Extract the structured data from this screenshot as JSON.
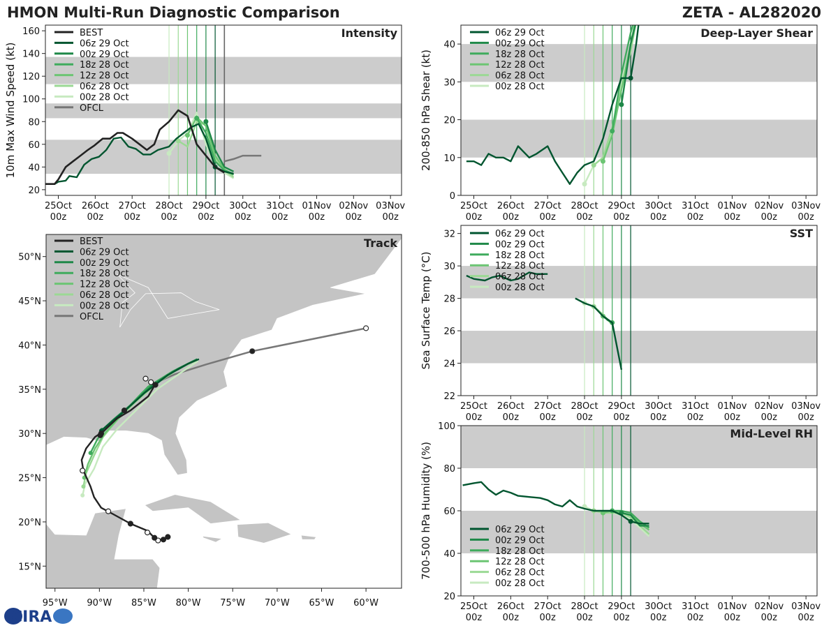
{
  "figure": {
    "title_left": "HMON Multi-Run Diagnostic Comparison",
    "title_right": "ZETA - AL282020",
    "logo_text": "CIRA"
  },
  "colors": {
    "best": "#222222",
    "ofcl": "#777777",
    "runs": [
      "#00552f",
      "#1e8848",
      "#3fab5d",
      "#6cc573",
      "#9bd994",
      "#c7eac0"
    ],
    "band": "#cccccc",
    "land": "#c4c4c4",
    "ocean": "#ffffff"
  },
  "time_axis": {
    "ticks": [
      {
        "d": 0,
        "l1": "25Oct",
        "l2": "00z"
      },
      {
        "d": 1,
        "l1": "26Oct",
        "l2": "00z"
      },
      {
        "d": 2,
        "l1": "27Oct",
        "l2": "00z"
      },
      {
        "d": 3,
        "l1": "28Oct",
        "l2": "00z"
      },
      {
        "d": 4,
        "l1": "29Oct",
        "l2": "00z"
      },
      {
        "d": 5,
        "l1": "30Oct",
        "l2": "00z"
      },
      {
        "d": 6,
        "l1": "31Oct",
        "l2": "00z"
      },
      {
        "d": 7,
        "l1": "01Nov",
        "l2": "00z"
      },
      {
        "d": 8,
        "l1": "02Nov",
        "l2": "00z"
      },
      {
        "d": 9,
        "l1": "03Nov",
        "l2": "00z"
      }
    ],
    "xlim": [
      -0.35,
      9.3
    ]
  },
  "runs": [
    {
      "name": "06z 29 Oct",
      "init": 4.25
    },
    {
      "name": "00z 29 Oct",
      "init": 4.0
    },
    {
      "name": "18z 28 Oct",
      "init": 3.75
    },
    {
      "name": "12z 28 Oct",
      "init": 3.5
    },
    {
      "name": "06z 28 Oct",
      "init": 3.25
    },
    {
      "name": "00z 28 Oct",
      "init": 3.0
    }
  ],
  "chart_data": [
    {
      "id": "intensity",
      "type": "line",
      "title": "Intensity",
      "ylabel": "10m Max Wind Speed (kt)",
      "ylim": [
        15,
        165
      ],
      "yticks": [
        20,
        40,
        60,
        80,
        100,
        120,
        140,
        160
      ],
      "bands": [
        [
          34,
          64
        ],
        [
          83,
          96
        ],
        [
          113,
          137
        ]
      ],
      "vline_runs": true,
      "vline_extra": 4.5,
      "legend": [
        "BEST",
        "06z 29 Oct",
        "00z 29 Oct",
        "18z 28 Oct",
        "12z 28 Oct",
        "06z 28 Oct",
        "00z 28 Oct",
        "OFCL"
      ],
      "best": {
        "x": [
          -0.35,
          -0.1,
          0.0,
          0.2,
          0.4,
          0.6,
          0.8,
          0.98,
          1.2,
          1.4,
          1.6,
          1.75,
          2.0,
          2.2,
          2.4,
          2.6,
          2.75,
          3.0,
          3.25,
          3.5,
          3.75,
          4.0,
          4.25,
          4.5
        ],
        "y": [
          25,
          25,
          29,
          40,
          45,
          50,
          55,
          59,
          65,
          65,
          70,
          70,
          65,
          60,
          55,
          60,
          73,
          80,
          90,
          85,
          60,
          50,
          40,
          35
        ]
      },
      "ofcl": {
        "x": [
          4.5,
          4.75,
          5.0,
          5.5
        ],
        "y": [
          45,
          47,
          50,
          50
        ]
      },
      "series": [
        {
          "run": 5,
          "x": [
            3.0,
            3.25,
            3.5,
            3.75,
            4.0,
            4.25,
            4.5,
            4.75
          ],
          "y": [
            52,
            63,
            70,
            88,
            60,
            40,
            35,
            30
          ]
        },
        {
          "run": 4,
          "x": [
            3.25,
            3.5,
            3.75,
            4.0,
            4.25,
            4.5,
            4.75
          ],
          "y": [
            63,
            58,
            80,
            77,
            48,
            37,
            31
          ]
        },
        {
          "run": 3,
          "x": [
            3.5,
            3.75,
            4.0,
            4.25,
            4.5,
            4.75
          ],
          "y": [
            68,
            84,
            76,
            50,
            38,
            33
          ]
        },
        {
          "run": 2,
          "x": [
            3.75,
            4.0,
            4.25,
            4.5,
            4.75
          ],
          "y": [
            83,
            70,
            45,
            37,
            34
          ]
        },
        {
          "run": 1,
          "x": [
            4.0,
            4.25,
            4.5,
            4.75
          ],
          "y": [
            80,
            55,
            40,
            36
          ]
        },
        {
          "run": 0,
          "x": [
            -0.35,
            -0.1,
            0.0,
            0.2,
            0.3,
            0.5,
            0.7,
            0.9,
            1.1,
            1.3,
            1.5,
            1.7,
            1.9,
            2.1,
            2.3,
            2.5,
            2.7,
            3.0,
            3.2,
            3.4,
            3.6,
            3.8,
            4.0,
            4.25,
            4.5,
            4.75
          ],
          "y": [
            25,
            25,
            27,
            28,
            32,
            31,
            42,
            47,
            49,
            55,
            65,
            66,
            58,
            56,
            51,
            51,
            55,
            58,
            65,
            70,
            75,
            78,
            65,
            40,
            36,
            34
          ]
        }
      ]
    },
    {
      "id": "shear",
      "type": "line",
      "title": "Deep-Layer Shear",
      "ylabel": "200-850 hPa Shear (kt)",
      "ylim": [
        0,
        45
      ],
      "yticks": [
        0,
        10,
        20,
        30,
        40
      ],
      "bands": [
        [
          10,
          20
        ],
        [
          30,
          40
        ]
      ],
      "vline_runs": true,
      "legend": [
        "06z 29 Oct",
        "00z 29 Oct",
        "18z 28 Oct",
        "12z 28 Oct",
        "06z 28 Oct",
        "00z 28 Oct"
      ],
      "series": [
        {
          "run": 5,
          "x": [
            3.0,
            3.25,
            3.5,
            3.75,
            4.0,
            4.25,
            4.4
          ],
          "y": [
            3,
            8,
            10,
            17,
            30,
            39,
            46
          ]
        },
        {
          "run": 4,
          "x": [
            3.25,
            3.5,
            3.75,
            4.0,
            4.25,
            4.4
          ],
          "y": [
            8,
            10,
            18,
            28,
            38,
            46
          ]
        },
        {
          "run": 3,
          "x": [
            3.5,
            3.75,
            4.0,
            4.25,
            4.4
          ],
          "y": [
            9,
            16,
            28,
            40,
            47
          ]
        },
        {
          "run": 2,
          "x": [
            3.75,
            4.0,
            4.25,
            4.4
          ],
          "y": [
            17,
            32,
            43,
            48
          ]
        },
        {
          "run": 1,
          "x": [
            4.0,
            4.25,
            4.45
          ],
          "y": [
            24,
            40,
            48
          ]
        },
        {
          "run": 0,
          "x": [
            -0.2,
            0.0,
            0.2,
            0.4,
            0.6,
            0.8,
            1.0,
            1.2,
            1.5,
            1.7,
            2.0,
            2.2,
            2.4,
            2.6,
            2.8,
            3.0,
            3.25,
            3.5,
            3.75,
            4.0,
            4.25,
            4.4,
            4.5
          ],
          "y": [
            9,
            9,
            8,
            11,
            10,
            10,
            9,
            13,
            10,
            11,
            13,
            9,
            6,
            3,
            6,
            8,
            9,
            15,
            24,
            31,
            31,
            40,
            48
          ]
        }
      ]
    },
    {
      "id": "track",
      "type": "map",
      "title": "Track",
      "lonlim": [
        -96,
        -56
      ],
      "latlim": [
        12.5,
        52.5
      ],
      "xticks": [
        -95,
        -90,
        -85,
        -80,
        -75,
        -70,
        -65,
        -60
      ],
      "xtick_labels": [
        "95°W",
        "90°W",
        "85°W",
        "80°W",
        "75°W",
        "70°W",
        "65°W",
        "60°W"
      ],
      "yticks": [
        15,
        20,
        25,
        30,
        35,
        40,
        45,
        50
      ],
      "ytick_labels": [
        "15°N",
        "20°N",
        "25°N",
        "30°N",
        "35°N",
        "40°N",
        "45°N",
        "50°N"
      ],
      "legend": [
        "BEST",
        "06z 29 Oct",
        "00z 29 Oct",
        "18z 28 Oct",
        "12z 28 Oct",
        "06z 28 Oct",
        "00z 28 Oct",
        "OFCL"
      ],
      "best": {
        "lon": [
          -82.3,
          -82.8,
          -83.4,
          -83.8,
          -84.6,
          -86.5,
          -88.5,
          -89.8,
          -90.6,
          -91.0,
          -91.4,
          -91.8,
          -92.0,
          -91.5,
          -90.5,
          -89.6,
          -88.0,
          -86.5,
          -84.5,
          -83.8
        ],
        "lat": [
          18.3,
          18.0,
          18.0,
          18.2,
          19.0,
          19.8,
          20.9,
          21.6,
          22.8,
          24.0,
          24.9,
          25.8,
          27.0,
          28.3,
          29.6,
          30.2,
          31.7,
          32.6,
          34.2,
          35.4
        ]
      },
      "best_markers": [
        {
          "lon": -82.3,
          "lat": 18.3,
          "f": "#222"
        },
        {
          "lon": -82.8,
          "lat": 18.0,
          "f": "#222"
        },
        {
          "lon": -83.4,
          "lat": 17.9,
          "f": "#fff"
        },
        {
          "lon": -83.8,
          "lat": 18.2,
          "f": "#222"
        },
        {
          "lon": -84.6,
          "lat": 18.8,
          "f": "#fff"
        },
        {
          "lon": -86.5,
          "lat": 19.8,
          "f": "#222"
        },
        {
          "lon": -89.0,
          "lat": 21.2,
          "f": "#fff"
        },
        {
          "lon": -91.9,
          "lat": 25.8,
          "f": "#fff"
        },
        {
          "lon": -89.8,
          "lat": 30.0,
          "f": "#222"
        },
        {
          "lon": -89.9,
          "lat": 29.8,
          "f": "#222"
        },
        {
          "lon": -87.2,
          "lat": 32.6,
          "f": "#222"
        },
        {
          "lon": -84.8,
          "lat": 36.2,
          "f": "#fff"
        },
        {
          "lon": -84.2,
          "lat": 35.8,
          "f": "#fff"
        },
        {
          "lon": -83.7,
          "lat": 35.5,
          "f": "#222"
        }
      ],
      "ofcl": {
        "lon": [
          -84.2,
          -81.5,
          -78.0,
          -72.8,
          -60.0
        ],
        "lat": [
          35.5,
          36.7,
          37.8,
          39.3,
          41.9
        ]
      },
      "ofcl_markers": [
        {
          "lon": -72.8,
          "lat": 39.3,
          "f": "#222"
        },
        {
          "lon": -60.0,
          "lat": 41.9,
          "f": "#fff"
        }
      ],
      "series": [
        {
          "run": 5,
          "lon": [
            -91.9,
            -91.6,
            -90.6,
            -89.6,
            -88.0,
            -86.0,
            -83.5,
            -80.5,
            -78.9
          ],
          "lat": [
            23.0,
            24.3,
            26.0,
            28.5,
            30.5,
            32.5,
            35.0,
            37.1,
            38.2
          ]
        },
        {
          "run": 4,
          "lon": [
            -91.8,
            -91.5,
            -90.6,
            -89.6,
            -88.0,
            -86.0,
            -83.5,
            -80.8,
            -79.0
          ],
          "lat": [
            24.0,
            25.5,
            27.5,
            29.6,
            31.5,
            33.5,
            35.7,
            37.5,
            38.3
          ]
        },
        {
          "run": 3,
          "lon": [
            -91.7,
            -91.3,
            -90.5,
            -89.4,
            -87.5,
            -85.2,
            -82.5,
            -79.4
          ],
          "lat": [
            25.0,
            26.5,
            28.3,
            30.0,
            32.1,
            34.6,
            36.5,
            38.2
          ]
        },
        {
          "run": 2,
          "lon": [
            -91.0,
            -90.2,
            -89.2,
            -87.0,
            -84.5,
            -81.8,
            -79.0
          ],
          "lat": [
            27.8,
            29.4,
            30.6,
            32.7,
            35.3,
            37.0,
            38.4
          ]
        },
        {
          "run": 1,
          "lon": [
            -89.7,
            -88.5,
            -86.5,
            -84.0,
            -81.2,
            -79.0
          ],
          "lat": [
            30.4,
            31.5,
            33.2,
            35.5,
            37.3,
            38.4
          ]
        },
        {
          "run": 0,
          "lon": [
            -89.8,
            -89.0,
            -87.2,
            -84.9,
            -82.3,
            -80.0,
            -78.8
          ],
          "lat": [
            30.3,
            31.0,
            32.5,
            34.6,
            36.6,
            37.9,
            38.4
          ]
        }
      ]
    },
    {
      "id": "sst",
      "type": "line",
      "title": "SST",
      "ylabel": "Sea Surface Temp (°C)",
      "ylim": [
        22,
        32.5
      ],
      "yticks": [
        22,
        24,
        26,
        28,
        30,
        32
      ],
      "bands": [
        [
          24,
          26
        ],
        [
          28,
          30
        ]
      ],
      "vline_runs": true,
      "legend": [
        "06z 29 Oct",
        "00z 29 Oct",
        "18z 28 Oct",
        "12z 28 Oct",
        "06z 28 Oct",
        "00z 28 Oct"
      ],
      "series": [
        {
          "run": 5,
          "x": [
            3.0,
            3.25,
            3.5,
            3.75
          ],
          "y": [
            27.7,
            27.5,
            26.9,
            26.4
          ]
        },
        {
          "run": 4,
          "x": [
            3.25,
            3.5,
            3.75
          ],
          "y": [
            27.5,
            27.0,
            26.4
          ]
        },
        {
          "run": 3,
          "x": [
            3.5,
            3.75
          ],
          "y": [
            26.9,
            26.5
          ]
        },
        {
          "run": 2,
          "x": [
            3.55,
            3.75
          ],
          "y": [
            26.8,
            26.5
          ]
        },
        {
          "run": 1,
          "x": [
            3.6,
            3.75
          ],
          "y": [
            26.7,
            26.5
          ]
        },
        {
          "run": 0,
          "x": [
            -0.2,
            0.0,
            0.3,
            0.5,
            0.7,
            1.0,
            1.2,
            1.5,
            1.7,
            2.0
          ],
          "y": [
            29.4,
            29.2,
            29.1,
            29.3,
            29.4,
            29.1,
            29.2,
            29.6,
            29.5,
            29.5
          ]
        },
        {
          "run": 0,
          "x": [
            2.75,
            3.0,
            3.25,
            3.5,
            3.75,
            4.0
          ],
          "y": [
            28.0,
            27.7,
            27.5,
            26.9,
            26.5,
            23.6
          ]
        }
      ]
    },
    {
      "id": "rh",
      "type": "line",
      "title": "Mid-Level RH",
      "ylabel": "700-500 hPa Humidity (%)",
      "ylim": [
        20,
        100
      ],
      "yticks": [
        20,
        40,
        60,
        80,
        100
      ],
      "bands": [
        [
          40,
          60
        ],
        [
          80,
          100
        ]
      ],
      "vline_runs": true,
      "legend": [
        "06z 29 Oct",
        "00z 29 Oct",
        "18z 28 Oct",
        "12z 28 Oct",
        "06z 28 Oct",
        "00z 28 Oct"
      ],
      "series": [
        {
          "run": 5,
          "x": [
            3.0,
            3.25,
            3.5,
            3.75,
            4.0,
            4.25,
            4.5,
            4.75
          ],
          "y": [
            62,
            60,
            59,
            59,
            58,
            56,
            52,
            48
          ]
        },
        {
          "run": 4,
          "x": [
            3.25,
            3.5,
            3.75,
            4.0,
            4.25,
            4.5,
            4.75
          ],
          "y": [
            60,
            59,
            59,
            59,
            57,
            53,
            49
          ]
        },
        {
          "run": 3,
          "x": [
            3.5,
            3.75,
            4.0,
            4.25,
            4.5,
            4.75
          ],
          "y": [
            59,
            60,
            59,
            58,
            54,
            51
          ]
        },
        {
          "run": 2,
          "x": [
            3.75,
            4.0,
            4.25,
            4.5,
            4.75
          ],
          "y": [
            60,
            60,
            59,
            55,
            52
          ]
        },
        {
          "run": 1,
          "x": [
            4.0,
            4.25,
            4.5,
            4.75
          ],
          "y": [
            59,
            58,
            53,
            53
          ]
        },
        {
          "run": 0,
          "x": [
            -0.3,
            0.0,
            0.2,
            0.4,
            0.6,
            0.8,
            1.0,
            1.2,
            1.5,
            1.8,
            2.0,
            2.2,
            2.4,
            2.6,
            2.8,
            3.0,
            3.25,
            3.5,
            3.75,
            4.0,
            4.25,
            4.5,
            4.75
          ],
          "y": [
            72,
            73,
            73.5,
            70,
            67.5,
            69.5,
            68.5,
            67,
            66.5,
            66,
            65,
            63,
            62,
            65,
            62,
            61,
            60,
            60,
            60,
            58,
            55,
            54,
            54
          ]
        }
      ]
    }
  ]
}
